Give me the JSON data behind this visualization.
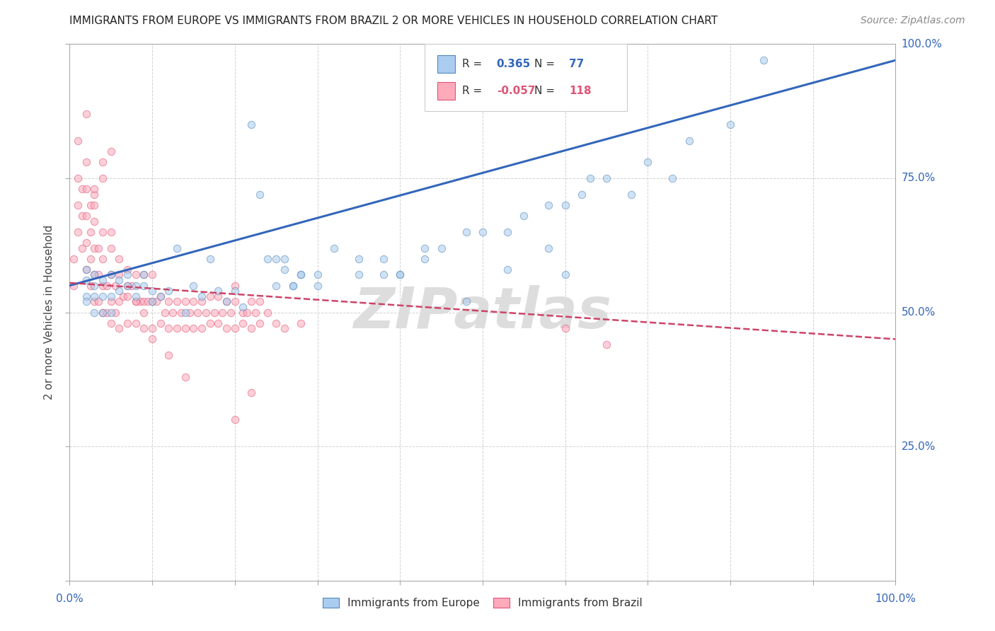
{
  "title": "IMMIGRANTS FROM EUROPE VS IMMIGRANTS FROM BRAZIL 2 OR MORE VEHICLES IN HOUSEHOLD CORRELATION CHART",
  "source": "Source: ZipAtlas.com",
  "ylabel": "2 or more Vehicles in Household",
  "watermark": "ZIPatlas",
  "legend_blue_r": "0.365",
  "legend_blue_n": "77",
  "legend_pink_r": "-0.057",
  "legend_pink_n": "118",
  "blue_scatter_x": [
    0.02,
    0.02,
    0.02,
    0.02,
    0.03,
    0.03,
    0.03,
    0.03,
    0.04,
    0.04,
    0.04,
    0.05,
    0.05,
    0.05,
    0.06,
    0.06,
    0.07,
    0.07,
    0.08,
    0.08,
    0.09,
    0.09,
    0.1,
    0.1,
    0.11,
    0.12,
    0.13,
    0.14,
    0.15,
    0.16,
    0.17,
    0.18,
    0.19,
    0.2,
    0.21,
    0.22,
    0.23,
    0.24,
    0.25,
    0.26,
    0.27,
    0.28,
    0.3,
    0.32,
    0.35,
    0.38,
    0.4,
    0.43,
    0.45,
    0.48,
    0.5,
    0.53,
    0.55,
    0.58,
    0.6,
    0.62,
    0.63,
    0.65,
    0.68,
    0.7,
    0.73,
    0.75,
    0.8,
    0.48,
    0.53,
    0.58,
    0.6,
    0.4,
    0.43,
    0.38,
    0.35,
    0.3,
    0.28,
    0.27,
    0.26,
    0.25,
    0.84
  ],
  "blue_scatter_y": [
    0.58,
    0.53,
    0.56,
    0.52,
    0.55,
    0.57,
    0.53,
    0.5,
    0.56,
    0.53,
    0.5,
    0.57,
    0.53,
    0.5,
    0.56,
    0.54,
    0.55,
    0.57,
    0.55,
    0.53,
    0.57,
    0.55,
    0.54,
    0.52,
    0.53,
    0.54,
    0.62,
    0.5,
    0.55,
    0.53,
    0.6,
    0.54,
    0.52,
    0.54,
    0.51,
    0.85,
    0.72,
    0.6,
    0.55,
    0.6,
    0.55,
    0.57,
    0.57,
    0.62,
    0.6,
    0.57,
    0.57,
    0.62,
    0.62,
    0.65,
    0.65,
    0.65,
    0.68,
    0.7,
    0.7,
    0.72,
    0.75,
    0.75,
    0.72,
    0.78,
    0.75,
    0.82,
    0.85,
    0.52,
    0.58,
    0.62,
    0.57,
    0.57,
    0.6,
    0.6,
    0.57,
    0.55,
    0.57,
    0.55,
    0.58,
    0.6,
    0.97
  ],
  "pink_scatter_x": [
    0.005,
    0.005,
    0.01,
    0.01,
    0.01,
    0.01,
    0.015,
    0.015,
    0.015,
    0.02,
    0.02,
    0.02,
    0.02,
    0.02,
    0.025,
    0.025,
    0.025,
    0.025,
    0.03,
    0.03,
    0.03,
    0.03,
    0.03,
    0.035,
    0.035,
    0.035,
    0.04,
    0.04,
    0.04,
    0.04,
    0.045,
    0.045,
    0.05,
    0.05,
    0.05,
    0.05,
    0.055,
    0.055,
    0.06,
    0.06,
    0.06,
    0.065,
    0.07,
    0.07,
    0.07,
    0.075,
    0.08,
    0.08,
    0.08,
    0.085,
    0.09,
    0.09,
    0.09,
    0.095,
    0.1,
    0.1,
    0.1,
    0.105,
    0.11,
    0.11,
    0.115,
    0.12,
    0.12,
    0.125,
    0.13,
    0.13,
    0.135,
    0.14,
    0.14,
    0.145,
    0.15,
    0.15,
    0.155,
    0.16,
    0.16,
    0.165,
    0.17,
    0.17,
    0.175,
    0.18,
    0.18,
    0.185,
    0.19,
    0.19,
    0.195,
    0.2,
    0.2,
    0.2,
    0.21,
    0.21,
    0.215,
    0.22,
    0.22,
    0.225,
    0.23,
    0.23,
    0.24,
    0.25,
    0.26,
    0.28,
    0.02,
    0.03,
    0.04,
    0.05,
    0.05,
    0.04,
    0.03,
    0.06,
    0.07,
    0.08,
    0.09,
    0.1,
    0.12,
    0.14,
    0.2,
    0.6,
    0.65,
    0.22
  ],
  "pink_scatter_y": [
    0.55,
    0.6,
    0.65,
    0.7,
    0.75,
    0.82,
    0.62,
    0.68,
    0.73,
    0.58,
    0.63,
    0.68,
    0.73,
    0.78,
    0.55,
    0.6,
    0.65,
    0.7,
    0.52,
    0.57,
    0.62,
    0.67,
    0.72,
    0.52,
    0.57,
    0.62,
    0.5,
    0.55,
    0.6,
    0.65,
    0.5,
    0.55,
    0.48,
    0.52,
    0.57,
    0.62,
    0.5,
    0.55,
    0.47,
    0.52,
    0.57,
    0.53,
    0.48,
    0.53,
    0.58,
    0.55,
    0.48,
    0.52,
    0.57,
    0.52,
    0.47,
    0.52,
    0.57,
    0.52,
    0.47,
    0.52,
    0.57,
    0.52,
    0.48,
    0.53,
    0.5,
    0.47,
    0.52,
    0.5,
    0.47,
    0.52,
    0.5,
    0.47,
    0.52,
    0.5,
    0.47,
    0.52,
    0.5,
    0.47,
    0.52,
    0.5,
    0.48,
    0.53,
    0.5,
    0.48,
    0.53,
    0.5,
    0.47,
    0.52,
    0.5,
    0.47,
    0.52,
    0.55,
    0.5,
    0.48,
    0.5,
    0.47,
    0.52,
    0.5,
    0.48,
    0.52,
    0.5,
    0.48,
    0.47,
    0.48,
    0.87,
    0.7,
    0.75,
    0.8,
    0.65,
    0.78,
    0.73,
    0.6,
    0.55,
    0.52,
    0.5,
    0.45,
    0.42,
    0.38,
    0.3,
    0.47,
    0.44,
    0.35
  ],
  "blue_line_x": [
    0.0,
    1.0
  ],
  "blue_line_y": [
    0.55,
    0.97
  ],
  "pink_line_x": [
    0.0,
    1.0
  ],
  "pink_line_y": [
    0.555,
    0.45
  ],
  "blue_color": "#aaccee",
  "blue_edge_color": "#5588bb",
  "pink_color": "#ffaabb",
  "pink_edge_color": "#dd5577",
  "blue_line_color": "#3366bb",
  "pink_line_color": "#cc4466",
  "bg_color": "#ffffff",
  "grid_color": "#cccccc",
  "title_color": "#222222",
  "axis_label_color": "#444444",
  "watermark_color": "#dddddd",
  "scatter_size": 55,
  "scatter_alpha": 0.55,
  "xlim": [
    0.0,
    1.0
  ],
  "ylim": [
    0.0,
    1.0
  ]
}
